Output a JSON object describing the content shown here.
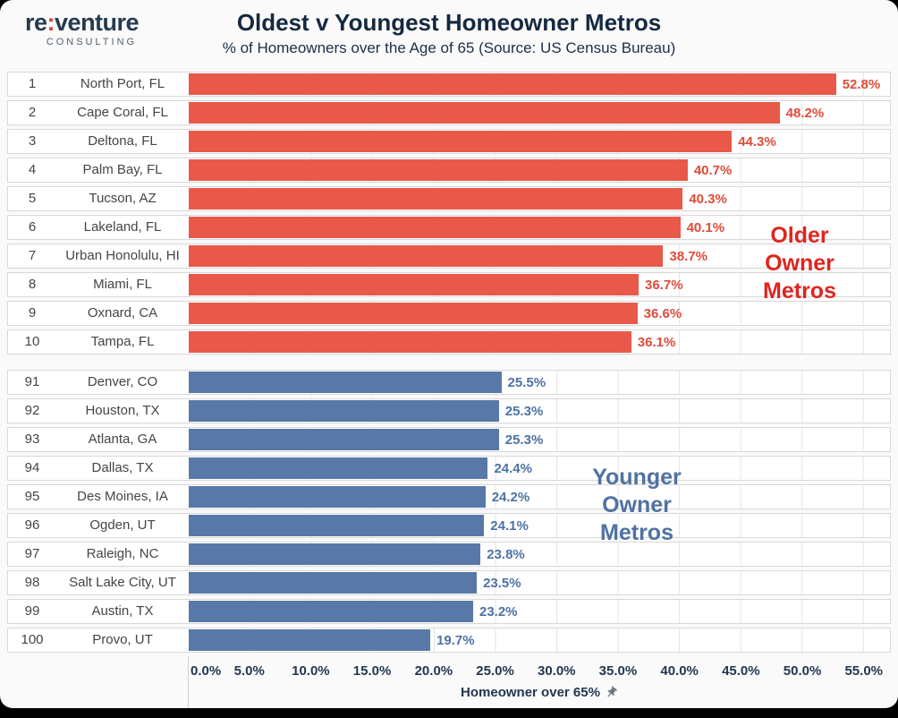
{
  "logo": {
    "name_pre": "re",
    "colon": ":",
    "name_post": "venture",
    "tagline": "CONSULTING"
  },
  "header": {
    "title": "Oldest v Youngest Homeowner Metros",
    "subtitle": "% of Homeowners over the Age of 65 (Source: US Census Bureau)"
  },
  "chart_data": {
    "type": "bar",
    "orientation": "horizontal",
    "xlabel": "Homeowner over 65%",
    "xlabel_icon": "pushpin-icon",
    "xlim": [
      0,
      57.2
    ],
    "grid": true,
    "x_ticks": [
      {
        "label": "0.0%",
        "value": 0
      },
      {
        "label": "5.0%",
        "value": 5
      },
      {
        "label": "10.0%",
        "value": 10
      },
      {
        "label": "15.0%",
        "value": 15
      },
      {
        "label": "20.0%",
        "value": 20
      },
      {
        "label": "25.0%",
        "value": 25
      },
      {
        "label": "30.0%",
        "value": 30
      },
      {
        "label": "35.0%",
        "value": 35
      },
      {
        "label": "40.0%",
        "value": 40
      },
      {
        "label": "45.0%",
        "value": 45
      },
      {
        "label": "50.0%",
        "value": 50
      },
      {
        "label": "55.0%",
        "value": 55
      }
    ],
    "groups": [
      {
        "name": "Older Owner Metros",
        "bar_color": "#e8594a",
        "label_color": "#e04b38",
        "annotation": {
          "lines": [
            "Older",
            "Owner",
            "Metros"
          ],
          "color": "#e02420"
        },
        "rows": [
          {
            "rank": "1",
            "metro": "North Port, FL",
            "value": 52.8,
            "label": "52.8%"
          },
          {
            "rank": "2",
            "metro": "Cape Coral, FL",
            "value": 48.2,
            "label": "48.2%"
          },
          {
            "rank": "3",
            "metro": "Deltona, FL",
            "value": 44.3,
            "label": "44.3%"
          },
          {
            "rank": "4",
            "metro": "Palm Bay, FL",
            "value": 40.7,
            "label": "40.7%"
          },
          {
            "rank": "5",
            "metro": "Tucson, AZ",
            "value": 40.3,
            "label": "40.3%"
          },
          {
            "rank": "6",
            "metro": "Lakeland, FL",
            "value": 40.1,
            "label": "40.1%"
          },
          {
            "rank": "7",
            "metro": "Urban Honolulu, HI",
            "value": 38.7,
            "label": "38.7%"
          },
          {
            "rank": "8",
            "metro": "Miami, FL",
            "value": 36.7,
            "label": "36.7%"
          },
          {
            "rank": "9",
            "metro": "Oxnard, CA",
            "value": 36.6,
            "label": "36.6%"
          },
          {
            "rank": "10",
            "metro": "Tampa, FL",
            "value": 36.1,
            "label": "36.1%"
          }
        ]
      },
      {
        "name": "Younger Owner Metros",
        "bar_color": "#5878a8",
        "label_color": "#4d72a3",
        "annotation": {
          "lines": [
            "Younger",
            "Owner",
            "Metros"
          ],
          "color": "#4f72a2"
        },
        "rows": [
          {
            "rank": "91",
            "metro": "Denver, CO",
            "value": 25.5,
            "label": "25.5%"
          },
          {
            "rank": "92",
            "metro": "Houston, TX",
            "value": 25.3,
            "label": "25.3%"
          },
          {
            "rank": "93",
            "metro": "Atlanta, GA",
            "value": 25.3,
            "label": "25.3%"
          },
          {
            "rank": "94",
            "metro": "Dallas, TX",
            "value": 24.4,
            "label": "24.4%"
          },
          {
            "rank": "95",
            "metro": "Des Moines, IA",
            "value": 24.2,
            "label": "24.2%"
          },
          {
            "rank": "96",
            "metro": "Ogden, UT",
            "value": 24.1,
            "label": "24.1%"
          },
          {
            "rank": "97",
            "metro": "Raleigh, NC",
            "value": 23.8,
            "label": "23.8%"
          },
          {
            "rank": "98",
            "metro": "Salt Lake City, UT",
            "value": 23.5,
            "label": "23.5%"
          },
          {
            "rank": "99",
            "metro": "Austin, TX",
            "value": 23.2,
            "label": "23.2%"
          },
          {
            "rank": "100",
            "metro": "Provo, UT",
            "value": 19.7,
            "label": "19.7%"
          }
        ]
      }
    ]
  }
}
